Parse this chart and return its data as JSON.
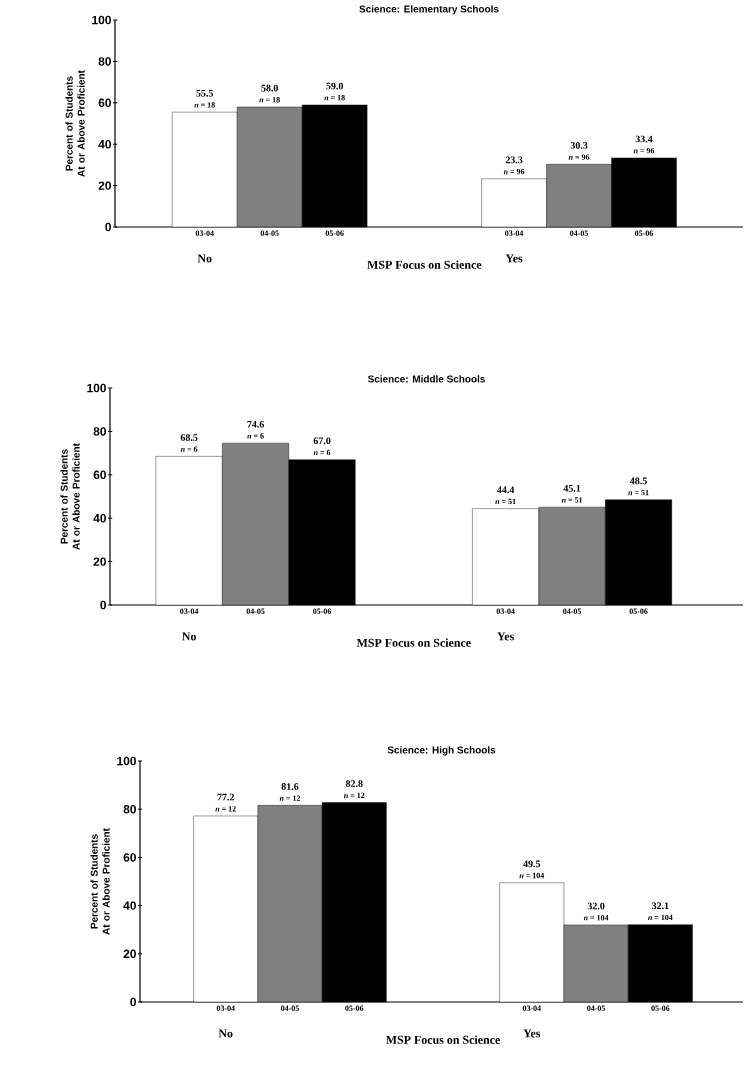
{
  "chart_data": [
    {
      "type": "bar",
      "title": "Science:  Elementary Schools",
      "xlabel": "MSP Focus on Science",
      "ylabel": "Percent of Students At or Above Proficient",
      "categories": [
        "No",
        "Yes"
      ],
      "ylim": [
        0,
        100
      ],
      "yticks": [
        0,
        20,
        40,
        60,
        80,
        100
      ],
      "series": [
        {
          "name": "03-04",
          "color": "#ffffff",
          "values": [
            55.5,
            23.3
          ],
          "value_labels": [
            "55.5",
            "23.3"
          ]
        },
        {
          "name": "04-05",
          "color": "#808080",
          "values": [
            58.0,
            30.3
          ],
          "value_labels": [
            "58.0",
            "30.3"
          ]
        },
        {
          "name": "05-06",
          "color": "#000000",
          "values": [
            59.0,
            33.4
          ],
          "value_labels": [
            "59.0",
            "33.4"
          ]
        }
      ],
      "annotations": [
        "*n* = 18",
        "*n* = 18",
        "*n* = 18",
        "*n* = 96",
        "*n* = 96",
        "*n* = 96"
      ]
    },
    {
      "type": "bar",
      "title": "Science:  Middle Schools",
      "xlabel": "MSP Focus on Science",
      "ylabel": "Percent of Students At or Above Proficient",
      "categories": [
        "No",
        "Yes"
      ],
      "ylim": [
        0,
        100
      ],
      "yticks": [
        0,
        20,
        40,
        60,
        80,
        100
      ],
      "series": [
        {
          "name": "03-04",
          "color": "#ffffff",
          "values": [
            68.5,
            44.4
          ],
          "value_labels": [
            "68.5",
            "44.4"
          ]
        },
        {
          "name": "04-05",
          "color": "#808080",
          "values": [
            74.6,
            45.1
          ],
          "value_labels": [
            "74.6",
            "45.1"
          ]
        },
        {
          "name": "05-06",
          "color": "#000000",
          "values": [
            67.0,
            48.5
          ],
          "value_labels": [
            "67.0",
            "48.5"
          ]
        }
      ],
      "annotations": [
        "*n* = 6",
        "*n* = 6",
        "*n* = 6",
        "*n* = 51",
        "*n* = 51",
        "*n* = 51"
      ]
    },
    {
      "type": "bar",
      "title": "Science:  High Schools",
      "xlabel": "MSP Focus on Science",
      "ylabel": "Percent of Students At or Above Proficient",
      "categories": [
        "No",
        "Yes"
      ],
      "ylim": [
        0,
        100
      ],
      "yticks": [
        0,
        20,
        40,
        60,
        80,
        100
      ],
      "series": [
        {
          "name": "03-04",
          "color": "#ffffff",
          "values": [
            77.2,
            49.5
          ],
          "value_labels": [
            "77.2",
            "49.5"
          ]
        },
        {
          "name": "04-05",
          "color": "#808080",
          "values": [
            81.6,
            32.0
          ],
          "value_labels": [
            "81.6",
            "32.0"
          ]
        },
        {
          "name": "05-06",
          "color": "#000000",
          "values": [
            82.8,
            32.1
          ],
          "value_labels": [
            "82.8",
            "32.1"
          ]
        }
      ],
      "annotations": [
        "*n* = 12",
        "*n* = 12",
        "*n* = 12",
        "*n* = 104",
        "*n* = 104",
        "*n* = 104"
      ]
    }
  ]
}
